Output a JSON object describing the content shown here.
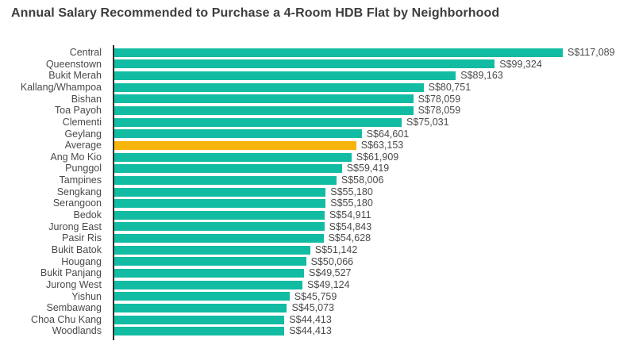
{
  "title": "Annual Salary Recommended to Purchase a 4-Room HDB Flat by Neighborhood",
  "colors": {
    "bar_teal": "#11BCA2",
    "bar_highlight_orange": "#F6B40C",
    "title_text": "#3D3D3D",
    "label_text": "#4A4A4A",
    "axis_line": "#2F2F2F",
    "background": "#FFFFFF"
  },
  "chart_data": {
    "type": "bar",
    "orientation": "horizontal",
    "title": "Annual Salary Recommended to Purchase a 4-Room HDB Flat by Neighborhood",
    "xlabel": "",
    "ylabel": "",
    "xlim": [
      0,
      120000
    ],
    "grid": false,
    "legend": "none",
    "value_label_position": "end-of-bar",
    "currency_prefix": "S$",
    "highlight_category": "Average",
    "highlight_index": 8,
    "categories": [
      "Central",
      "Queenstown",
      "Bukit Merah",
      "Kallang/Whampoa",
      "Bishan",
      "Toa Payoh",
      "Clementi",
      "Geylang",
      "Average",
      "Ang Mo Kio",
      "Punggol",
      "Tampines",
      "Sengkang",
      "Serangoon",
      "Bedok",
      "Jurong East",
      "Pasir Ris",
      "Bukit Batok",
      "Hougang",
      "Bukit Panjang",
      "Jurong West",
      "Yishun",
      "Sembawang",
      "Choa Chu Kang",
      "Woodlands"
    ],
    "values": [
      117089,
      99324,
      89163,
      80751,
      78059,
      78059,
      75031,
      64601,
      63153,
      61909,
      59419,
      58006,
      55180,
      55180,
      54911,
      54843,
      54628,
      51142,
      50066,
      49527,
      49124,
      45759,
      45073,
      44413,
      44413
    ],
    "value_labels": [
      "S$117,089",
      "S$99,324",
      "S$89,163",
      "S$80,751",
      "S$78,059",
      "S$78,059",
      "S$75,031",
      "S$64,601",
      "S$63,153",
      "S$61,909",
      "S$59,419",
      "S$58,006",
      "S$55,180",
      "S$55,180",
      "S$54,911",
      "S$54,843",
      "S$54,628",
      "S$51,142",
      "S$50,066",
      "S$49,527",
      "S$49,124",
      "S$45,759",
      "S$45,073",
      "S$44,413",
      "S$44,413"
    ]
  }
}
